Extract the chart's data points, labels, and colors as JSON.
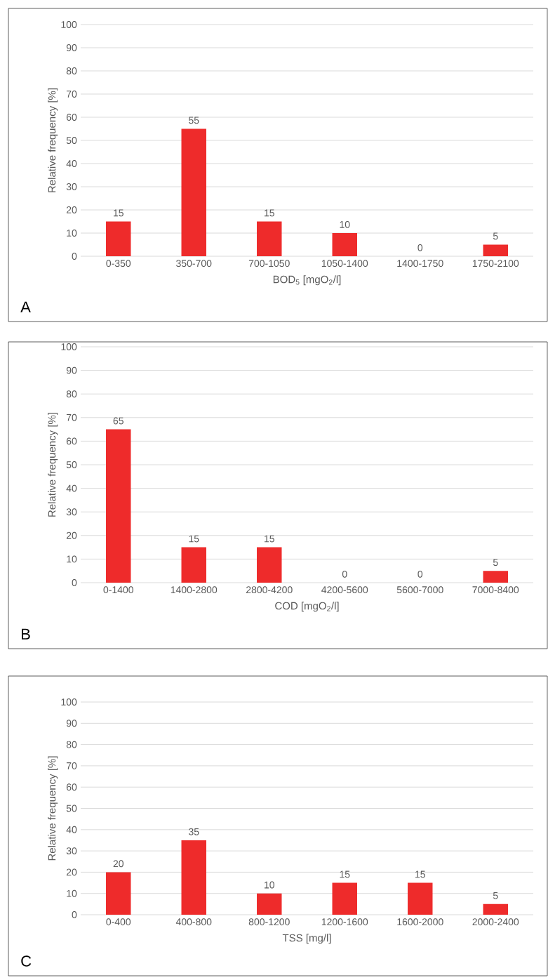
{
  "chart_data": [
    {
      "type": "bar",
      "categories": [
        "0-350",
        "350-700",
        "700-1050",
        "1050-1400",
        "1400-1750",
        "1750-2100"
      ],
      "values": [
        15,
        55,
        15,
        10,
        0,
        5
      ],
      "color": "#ee2b2b",
      "xlabel": "BOD$_{5}$ [mgO$_{2}$/l]",
      "ylabel": "Relative frequency [%]",
      "ylim": [
        0,
        100
      ],
      "yticks": [
        0,
        10,
        20,
        30,
        40,
        50,
        60,
        70,
        80,
        90,
        100
      ],
      "grid": "y",
      "data_labels": true,
      "annotations": [
        "A"
      ]
    },
    {
      "type": "bar",
      "categories": [
        "0-1400",
        "1400-2800",
        "2800-4200",
        "4200-5600",
        "5600-7000",
        "7000-8400"
      ],
      "values": [
        65,
        15,
        15,
        0,
        0,
        5
      ],
      "color": "#ee2b2b",
      "xlabel": "COD [mgO$_{2}$/l]",
      "ylabel": "Relative frequency [%]",
      "ylim": [
        0,
        100
      ],
      "yticks": [
        0,
        10,
        20,
        30,
        40,
        50,
        60,
        70,
        80,
        90,
        100
      ],
      "grid": "y",
      "data_labels": true,
      "annotations": [
        "B"
      ]
    },
    {
      "type": "bar",
      "categories": [
        "0-400",
        "400-800",
        "800-1200",
        "1200-1600",
        "1600-2000",
        "2000-2400"
      ],
      "values": [
        20,
        35,
        10,
        15,
        15,
        5
      ],
      "color": "#ee2b2b",
      "xlabel": "TSS [mg/l]",
      "ylabel": "Relative frequency [%]",
      "ylim": [
        0,
        100
      ],
      "yticks": [
        0,
        10,
        20,
        30,
        40,
        50,
        60,
        70,
        80,
        90,
        100
      ],
      "grid": "y",
      "data_labels": true,
      "annotations": [
        "C"
      ]
    }
  ]
}
